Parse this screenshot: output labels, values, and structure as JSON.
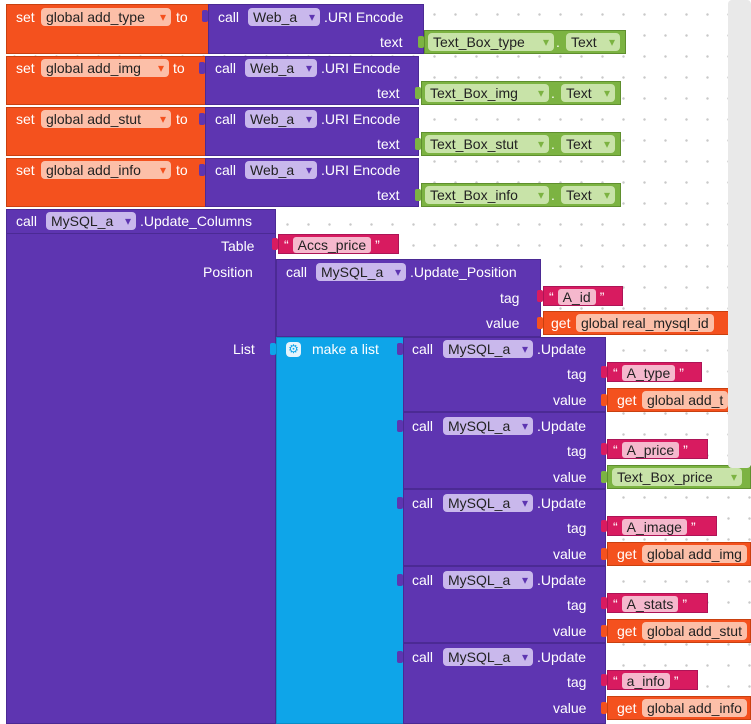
{
  "keywords": {
    "set": "set",
    "to": "to",
    "call": "call",
    "text": "text",
    "dot": ".",
    "get": "get",
    "quote": "“",
    "quote_end": "”"
  },
  "set_blocks": [
    {
      "var": "global add_type",
      "component": "Web_a",
      "method": ".URI Encode",
      "textbox": "Text_Box_type",
      "prop": "Text"
    },
    {
      "var": "global add_img",
      "component": "Web_a",
      "method": ".URI Encode",
      "textbox": "Text_Box_img",
      "prop": "Text"
    },
    {
      "var": "global add_stut",
      "component": "Web_a",
      "method": ".URI Encode",
      "textbox": "Text_Box_stut",
      "prop": "Text"
    },
    {
      "var": "global add_info",
      "component": "Web_a",
      "method": ".URI Encode",
      "textbox": "Text_Box_info",
      "prop": "Text"
    }
  ],
  "update_columns": {
    "component": "MySQL_a",
    "method": ".Update_Columns",
    "table_label": "Table",
    "table_value": "Accs_price",
    "position_label": "Position",
    "position": {
      "component": "MySQL_a",
      "method": ".Update_Position",
      "tag_label": "tag",
      "tag_value": "A_id",
      "value_label": "value",
      "value_get": "global real_mysql_id"
    },
    "list_label": "List",
    "make_list_label": "make a list",
    "updates": [
      {
        "component": "MySQL_a",
        "method": ".Update",
        "tag": "A_type",
        "value_kind": "get",
        "value": "global add_t"
      },
      {
        "component": "MySQL_a",
        "method": ".Update",
        "tag": "A_price",
        "value_kind": "textbox",
        "value": "Text_Box_price"
      },
      {
        "component": "MySQL_a",
        "method": ".Update",
        "tag": "A_image",
        "value_kind": "get",
        "value": "global add_img"
      },
      {
        "component": "MySQL_a",
        "method": ".Update",
        "tag": "A_stats",
        "value_kind": "get",
        "value": "global add_stut"
      },
      {
        "component": "MySQL_a",
        "method": ".Update",
        "tag": "a_info",
        "value_kind": "get",
        "value": "global add_info"
      }
    ],
    "update_tag_label": "tag",
    "update_value_label": "value"
  },
  "colors": {
    "variable_orange": "#f4511e",
    "component_purple": "#5e35b1",
    "property_green": "#7cb342",
    "text_pink": "#d81b60",
    "list_blue": "#0ea5e9"
  }
}
